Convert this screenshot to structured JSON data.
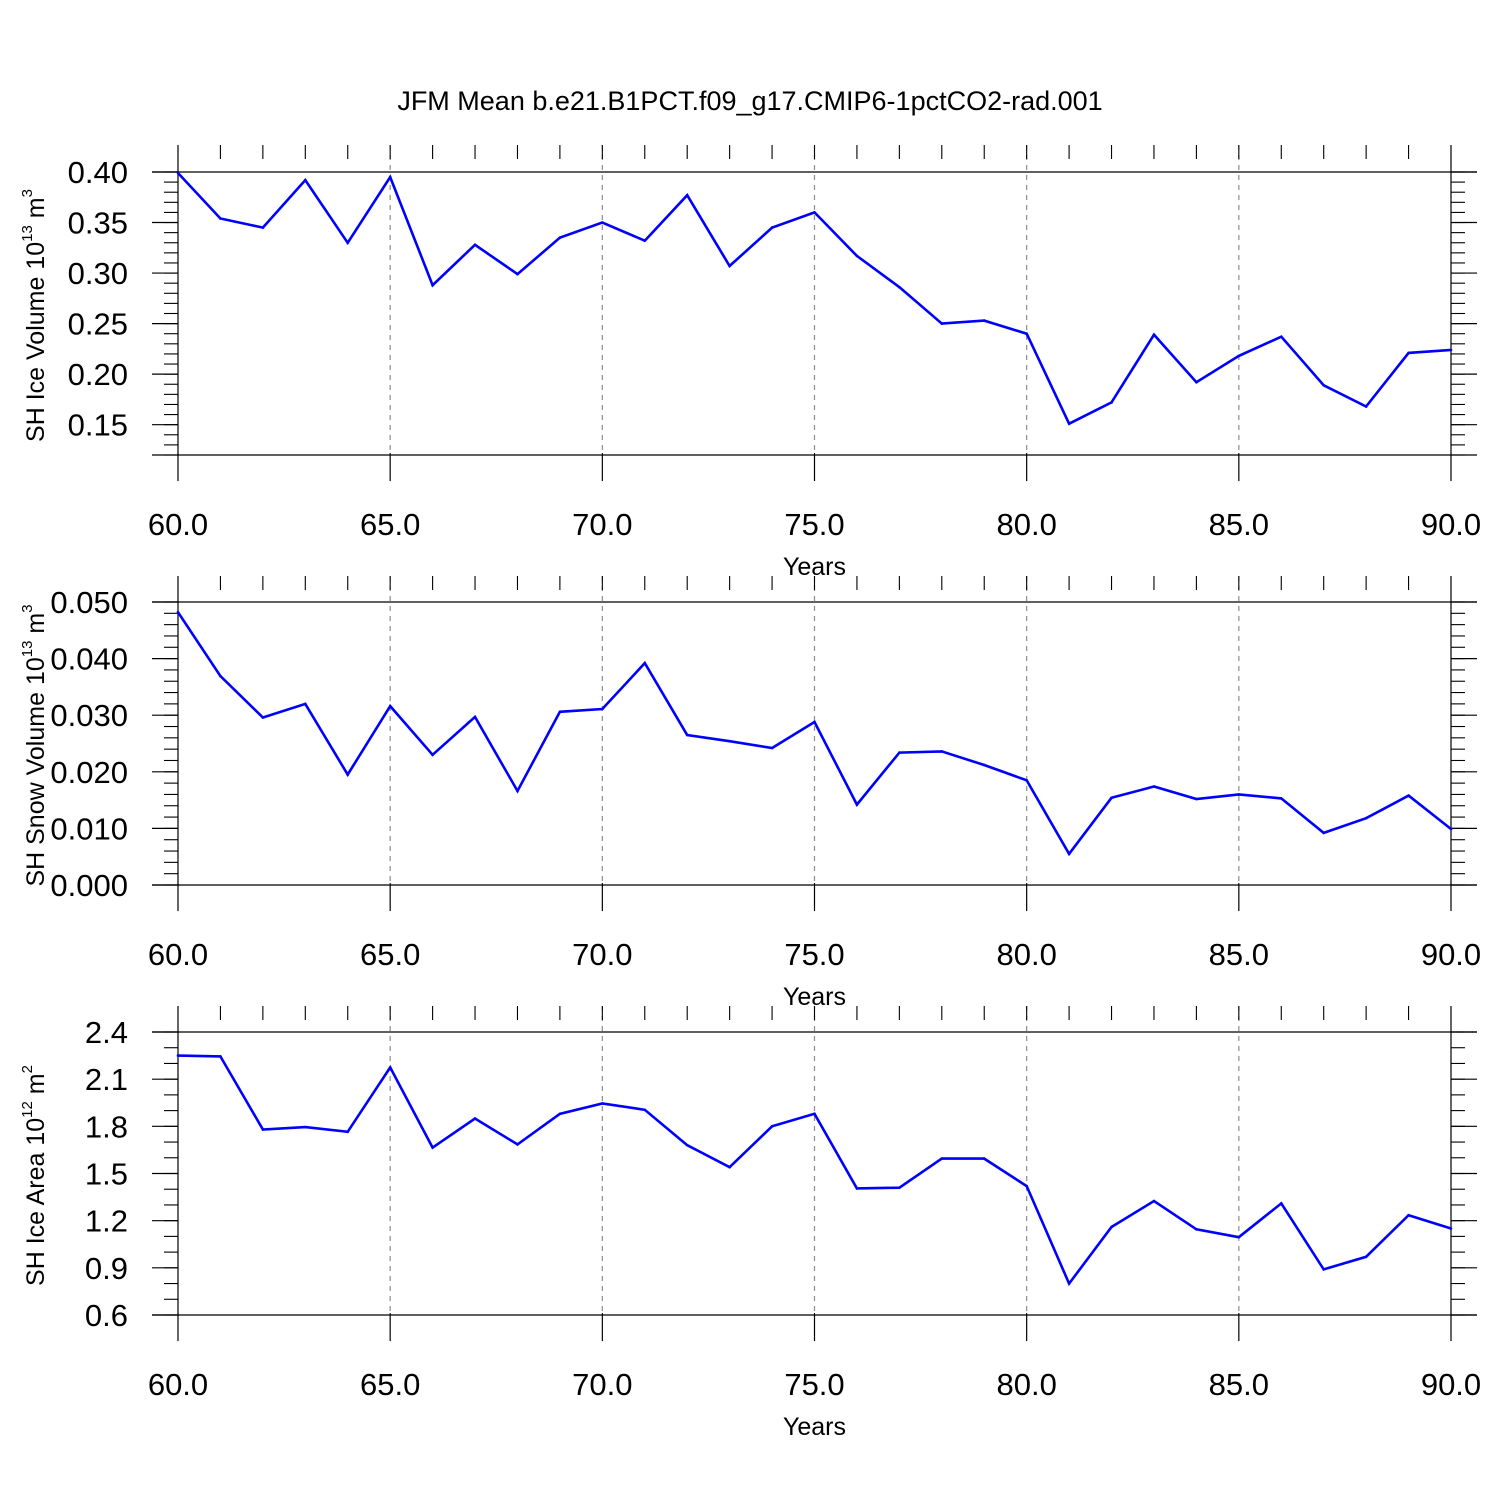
{
  "figure": {
    "title": "JFM Mean b.e21.B1PCT.f09_g17.CMIP6-1pctCO2-rad.001",
    "colors": {
      "line": "#0000ff",
      "axis": "#000000",
      "grid": "#8c8c8c"
    }
  },
  "chart_data": [
    {
      "type": "line",
      "xlabel": "Years",
      "ylabel": {
        "prefix": "SH Ice Volume 10",
        "exponent": "13",
        "unit": " m",
        "unit_exp": "3"
      },
      "xlim": [
        60,
        90
      ],
      "ylim": [
        0.12,
        0.4
      ],
      "x_ticks": [
        60,
        65,
        70,
        75,
        80,
        85,
        90
      ],
      "x_tick_labels": [
        "60.0",
        "65.0",
        "70.0",
        "75.0",
        "80.0",
        "85.0",
        "90.0"
      ],
      "y_ticks": [
        0.15,
        0.2,
        0.25,
        0.3,
        0.35,
        0.4
      ],
      "y_tick_labels": [
        "0.15",
        "0.20",
        "0.25",
        "0.30",
        "0.35",
        "0.40"
      ],
      "y_minor_step": 0.01,
      "grid": "vertical dashed at major x ticks",
      "series": [
        {
          "x": [
            60,
            61,
            62,
            63,
            64,
            65,
            66,
            67,
            68,
            69,
            70,
            71,
            72,
            73,
            74,
            75,
            76,
            77,
            78,
            79,
            80,
            81,
            82,
            83,
            84,
            85,
            86,
            87,
            88,
            89,
            90
          ],
          "values": [
            0.399,
            0.354,
            0.345,
            0.392,
            0.33,
            0.395,
            0.288,
            0.328,
            0.299,
            0.335,
            0.35,
            0.332,
            0.377,
            0.307,
            0.345,
            0.36,
            0.317,
            0.286,
            0.25,
            0.253,
            0.24,
            0.151,
            0.172,
            0.239,
            0.192,
            0.218,
            0.237,
            0.189,
            0.168,
            0.221,
            0.224
          ]
        }
      ]
    },
    {
      "type": "line",
      "xlabel": "Years",
      "ylabel": {
        "prefix": "SH Snow Volume 10",
        "exponent": "13",
        "unit": " m",
        "unit_exp": "3"
      },
      "xlim": [
        60,
        90
      ],
      "ylim": [
        0.0,
        0.05
      ],
      "x_ticks": [
        60,
        65,
        70,
        75,
        80,
        85,
        90
      ],
      "x_tick_labels": [
        "60.0",
        "65.0",
        "70.0",
        "75.0",
        "80.0",
        "85.0",
        "90.0"
      ],
      "y_ticks": [
        0.0,
        0.01,
        0.02,
        0.03,
        0.04,
        0.05
      ],
      "y_tick_labels": [
        "0.000",
        "0.010",
        "0.020",
        "0.030",
        "0.040",
        "0.050"
      ],
      "y_minor_step": 0.002,
      "grid": "vertical dashed at major x ticks",
      "series": [
        {
          "x": [
            60,
            61,
            62,
            63,
            64,
            65,
            66,
            67,
            68,
            69,
            70,
            71,
            72,
            73,
            74,
            75,
            76,
            77,
            78,
            79,
            80,
            81,
            82,
            83,
            84,
            85,
            86,
            87,
            88,
            89,
            90
          ],
          "values": [
            0.0482,
            0.0369,
            0.0296,
            0.032,
            0.0195,
            0.0316,
            0.023,
            0.0297,
            0.0166,
            0.0306,
            0.0311,
            0.0392,
            0.0265,
            0.0254,
            0.0242,
            0.0288,
            0.0142,
            0.0234,
            0.0236,
            0.0212,
            0.0185,
            0.0055,
            0.0154,
            0.0174,
            0.0152,
            0.016,
            0.0153,
            0.0092,
            0.0118,
            0.0158,
            0.0099
          ]
        }
      ]
    },
    {
      "type": "line",
      "xlabel": "Years",
      "ylabel": {
        "prefix": "SH Ice Area 10",
        "exponent": "12",
        "unit": " m",
        "unit_exp": "2"
      },
      "xlim": [
        60,
        90
      ],
      "ylim": [
        0.6,
        2.4
      ],
      "x_ticks": [
        60,
        65,
        70,
        75,
        80,
        85,
        90
      ],
      "x_tick_labels": [
        "60.0",
        "65.0",
        "70.0",
        "75.0",
        "80.0",
        "85.0",
        "90.0"
      ],
      "y_ticks": [
        0.6,
        0.9,
        1.2,
        1.5,
        1.8,
        2.1,
        2.4
      ],
      "y_tick_labels": [
        "0.6",
        "0.9",
        "1.2",
        "1.5",
        "1.8",
        "2.1",
        "2.4"
      ],
      "y_minor_step": 0.1,
      "grid": "vertical dashed at major x ticks",
      "series": [
        {
          "x": [
            60,
            61,
            62,
            63,
            64,
            65,
            66,
            67,
            68,
            69,
            70,
            71,
            72,
            73,
            74,
            75,
            76,
            77,
            78,
            79,
            80,
            81,
            82,
            83,
            84,
            85,
            86,
            87,
            88,
            89,
            90
          ],
          "values": [
            2.25,
            2.245,
            1.78,
            1.795,
            1.765,
            2.175,
            1.665,
            1.85,
            1.685,
            1.88,
            1.945,
            1.905,
            1.68,
            1.54,
            1.8,
            1.88,
            1.405,
            1.41,
            1.595,
            1.595,
            1.42,
            0.8,
            1.16,
            1.325,
            1.145,
            1.095,
            1.31,
            0.89,
            0.97,
            1.235,
            1.15
          ]
        }
      ]
    }
  ]
}
